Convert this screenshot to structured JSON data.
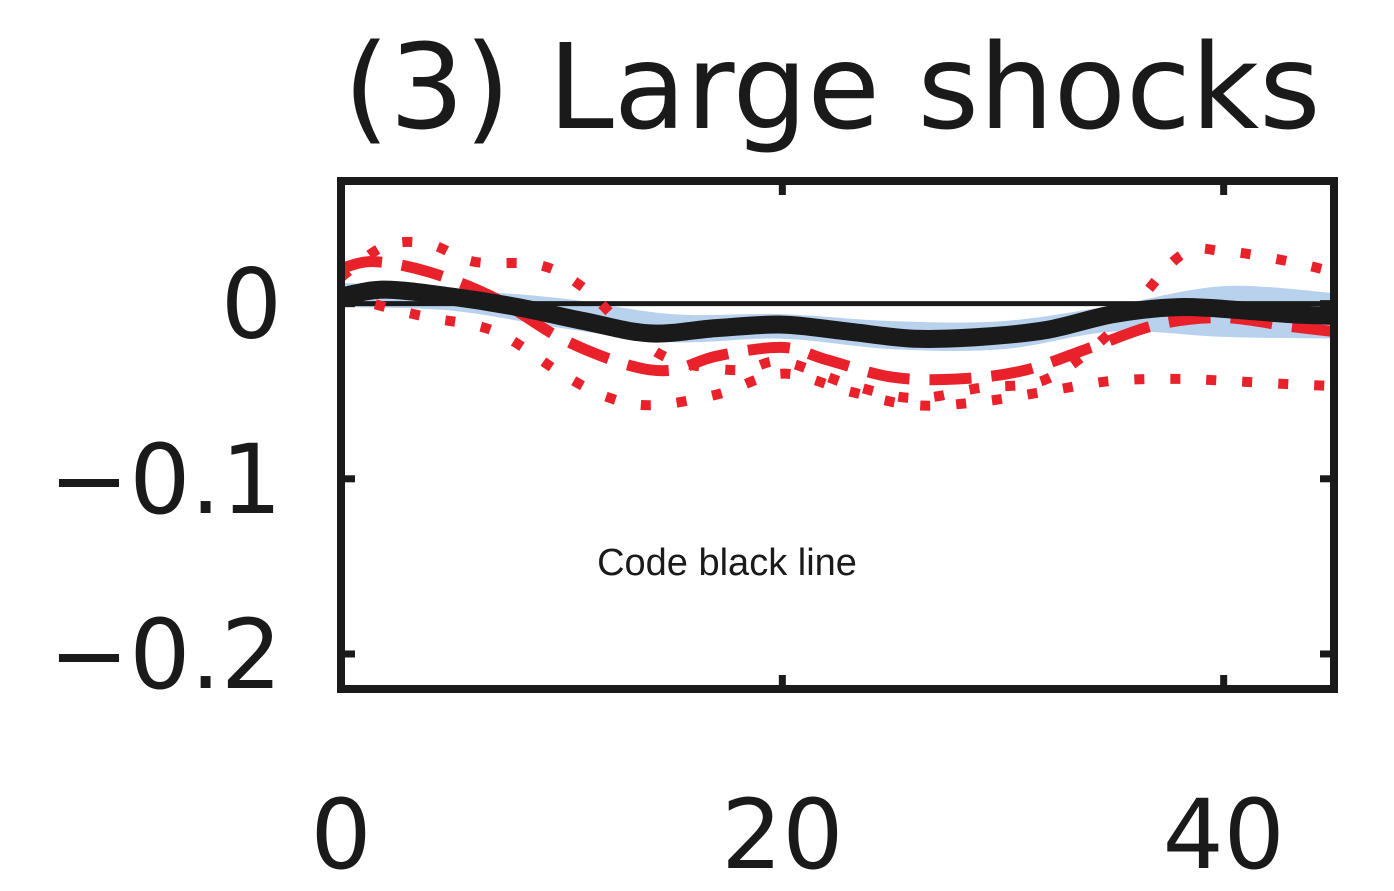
{
  "chart_data": {
    "type": "line",
    "title": "(3) Large shocks",
    "xlabel": "",
    "ylabel": "",
    "xlim": [
      0,
      45
    ],
    "ylim": [
      -0.22,
      0.07
    ],
    "x_ticks": [
      0,
      20,
      40
    ],
    "y_ticks": [
      0,
      -0.1,
      -0.2
    ],
    "x_tick_labels": [
      "0",
      "20",
      "40"
    ],
    "y_tick_labels": [
      "0",
      "−0.1",
      "−0.2"
    ],
    "zero_line": true,
    "grid": false,
    "annotation": "Code black line",
    "band": {
      "color": "#b8d2ee",
      "x": [
        0,
        5,
        10,
        15,
        20,
        25,
        30,
        35,
        40,
        45
      ],
      "upper": [
        0.012,
        0.008,
        0.003,
        -0.006,
        -0.006,
        -0.01,
        -0.01,
        -0.001,
        0.01,
        0.006
      ],
      "lower": [
        -0.002,
        -0.004,
        -0.014,
        -0.022,
        -0.02,
        -0.026,
        -0.026,
        -0.016,
        -0.019,
        -0.02
      ]
    },
    "series": [
      {
        "style": "solid",
        "color": "#1a1a1a",
        "x": [
          0,
          2,
          5,
          8,
          11,
          14,
          17,
          20,
          23,
          26,
          29,
          32,
          35,
          38,
          41,
          43,
          45
        ],
        "y": [
          0.004,
          0.008,
          0.004,
          -0.002,
          -0.01,
          -0.017,
          -0.014,
          -0.012,
          -0.016,
          -0.02,
          -0.019,
          -0.015,
          -0.006,
          -0.002,
          -0.004,
          -0.006,
          -0.007
        ]
      },
      {
        "style": "dashed",
        "color": "#e8212a",
        "x": [
          0,
          1.5,
          4,
          7,
          10,
          13,
          15,
          17,
          20,
          22,
          25,
          28,
          31,
          34,
          37,
          40,
          43,
          45
        ],
        "y": [
          0.02,
          0.024,
          0.018,
          0.003,
          -0.02,
          -0.035,
          -0.038,
          -0.03,
          -0.025,
          -0.032,
          -0.042,
          -0.043,
          -0.038,
          -0.025,
          -0.012,
          -0.008,
          -0.013,
          -0.016
        ]
      },
      {
        "style": "dotted",
        "color": "#e8212a",
        "x": [
          0,
          2,
          4,
          6,
          9,
          11,
          13,
          15,
          18,
          20,
          23,
          26,
          29,
          32,
          35,
          38,
          40,
          43,
          45
        ],
        "y": [
          0.015,
          0.033,
          0.034,
          0.024,
          0.022,
          0.009,
          -0.015,
          -0.032,
          -0.038,
          -0.033,
          -0.046,
          -0.054,
          -0.048,
          -0.043,
          -0.015,
          0.027,
          0.03,
          0.024,
          0.018
        ]
      },
      {
        "style": "dotted",
        "color": "#e8212a",
        "x": [
          0,
          2,
          4,
          7,
          10,
          12,
          14,
          17,
          20,
          23,
          26,
          29,
          32,
          35,
          38,
          40,
          43,
          45
        ],
        "y": [
          0.006,
          -0.002,
          -0.008,
          -0.016,
          -0.04,
          -0.053,
          -0.058,
          -0.052,
          -0.04,
          -0.05,
          -0.058,
          -0.056,
          -0.05,
          -0.044,
          -0.043,
          -0.044,
          -0.046,
          -0.047
        ]
      }
    ]
  }
}
